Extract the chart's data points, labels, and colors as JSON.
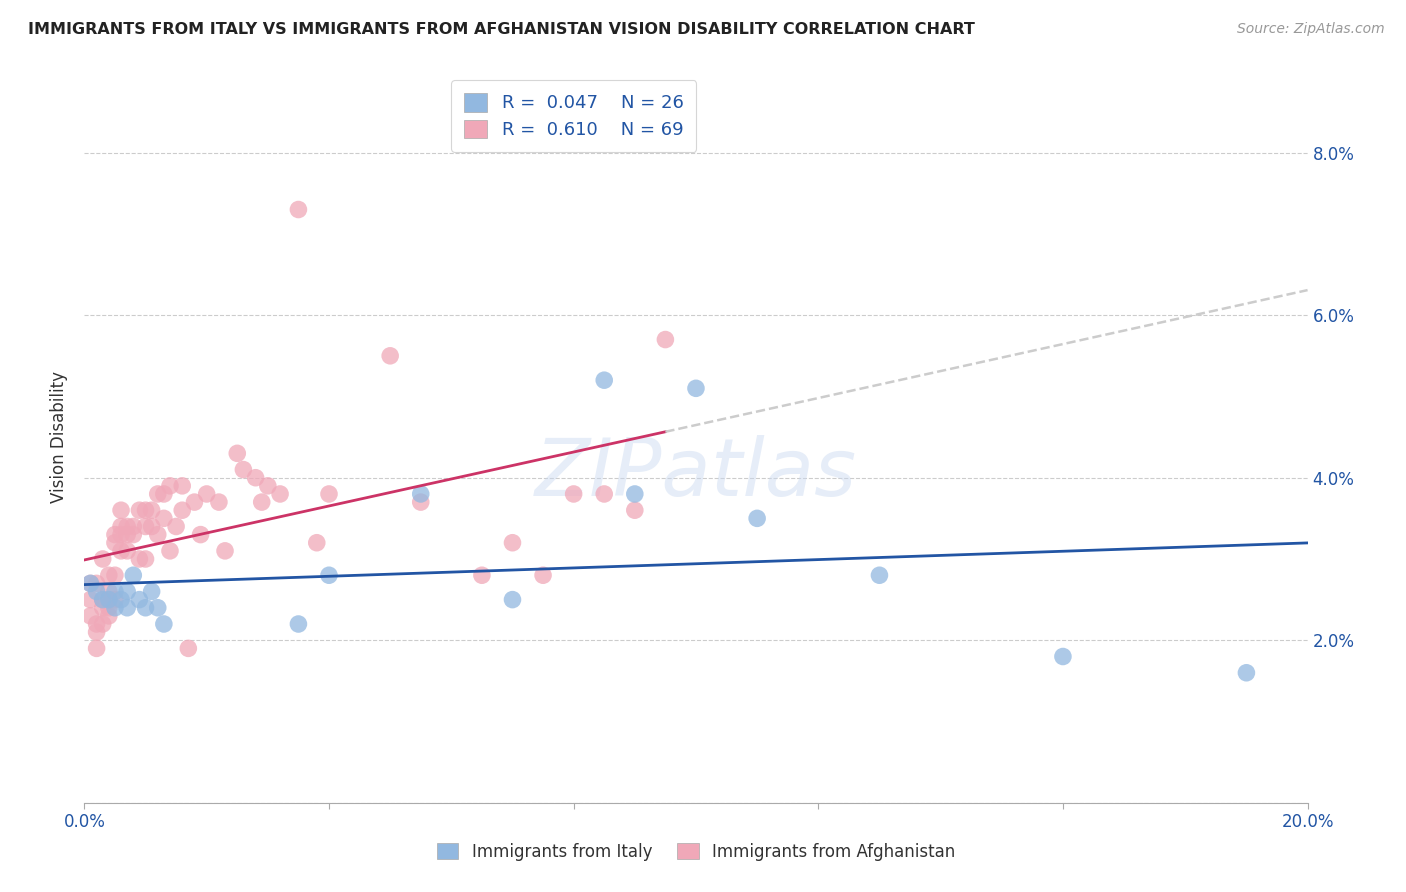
{
  "title": "IMMIGRANTS FROM ITALY VS IMMIGRANTS FROM AFGHANISTAN VISION DISABILITY CORRELATION CHART",
  "source": "Source: ZipAtlas.com",
  "xlabel_italy": "Immigrants from Italy",
  "xlabel_afghanistan": "Immigrants from Afghanistan",
  "ylabel": "Vision Disability",
  "watermark": "ZIPatlas",
  "italy_R": 0.047,
  "italy_N": 26,
  "afghanistan_R": 0.61,
  "afghanistan_N": 69,
  "xlim": [
    0.0,
    0.2
  ],
  "ylim": [
    0.0,
    0.09
  ],
  "italy_color": "#92b8e0",
  "afghanistan_color": "#f0a8b8",
  "italy_line_color": "#2255a4",
  "afghanistan_line_color": "#cc3366",
  "trend_ext_color": "#cccccc",
  "italy_x": [
    0.001,
    0.002,
    0.003,
    0.004,
    0.005,
    0.005,
    0.006,
    0.007,
    0.007,
    0.008,
    0.009,
    0.01,
    0.011,
    0.012,
    0.013,
    0.035,
    0.04,
    0.055,
    0.07,
    0.085,
    0.09,
    0.1,
    0.11,
    0.13,
    0.16,
    0.19
  ],
  "italy_y": [
    0.027,
    0.026,
    0.025,
    0.025,
    0.024,
    0.026,
    0.025,
    0.026,
    0.024,
    0.028,
    0.025,
    0.024,
    0.026,
    0.024,
    0.022,
    0.022,
    0.028,
    0.038,
    0.025,
    0.052,
    0.038,
    0.051,
    0.035,
    0.028,
    0.018,
    0.016
  ],
  "afghanistan_x": [
    0.001,
    0.001,
    0.001,
    0.002,
    0.002,
    0.002,
    0.002,
    0.003,
    0.003,
    0.003,
    0.003,
    0.004,
    0.004,
    0.004,
    0.004,
    0.004,
    0.005,
    0.005,
    0.005,
    0.005,
    0.006,
    0.006,
    0.006,
    0.006,
    0.007,
    0.007,
    0.007,
    0.008,
    0.008,
    0.009,
    0.009,
    0.01,
    0.01,
    0.01,
    0.011,
    0.011,
    0.012,
    0.012,
    0.013,
    0.013,
    0.014,
    0.014,
    0.015,
    0.016,
    0.016,
    0.017,
    0.018,
    0.019,
    0.02,
    0.022,
    0.023,
    0.025,
    0.026,
    0.028,
    0.029,
    0.03,
    0.032,
    0.035,
    0.038,
    0.04,
    0.05,
    0.055,
    0.065,
    0.07,
    0.075,
    0.08,
    0.085,
    0.09,
    0.095
  ],
  "afghanistan_y": [
    0.027,
    0.025,
    0.023,
    0.027,
    0.022,
    0.021,
    0.019,
    0.03,
    0.025,
    0.024,
    0.022,
    0.028,
    0.026,
    0.025,
    0.024,
    0.023,
    0.033,
    0.032,
    0.028,
    0.025,
    0.036,
    0.034,
    0.033,
    0.031,
    0.034,
    0.033,
    0.031,
    0.034,
    0.033,
    0.036,
    0.03,
    0.036,
    0.034,
    0.03,
    0.036,
    0.034,
    0.038,
    0.033,
    0.038,
    0.035,
    0.039,
    0.031,
    0.034,
    0.039,
    0.036,
    0.019,
    0.037,
    0.033,
    0.038,
    0.037,
    0.031,
    0.043,
    0.041,
    0.04,
    0.037,
    0.039,
    0.038,
    0.073,
    0.032,
    0.038,
    0.055,
    0.037,
    0.028,
    0.032,
    0.028,
    0.038,
    0.038,
    0.036,
    0.057
  ]
}
